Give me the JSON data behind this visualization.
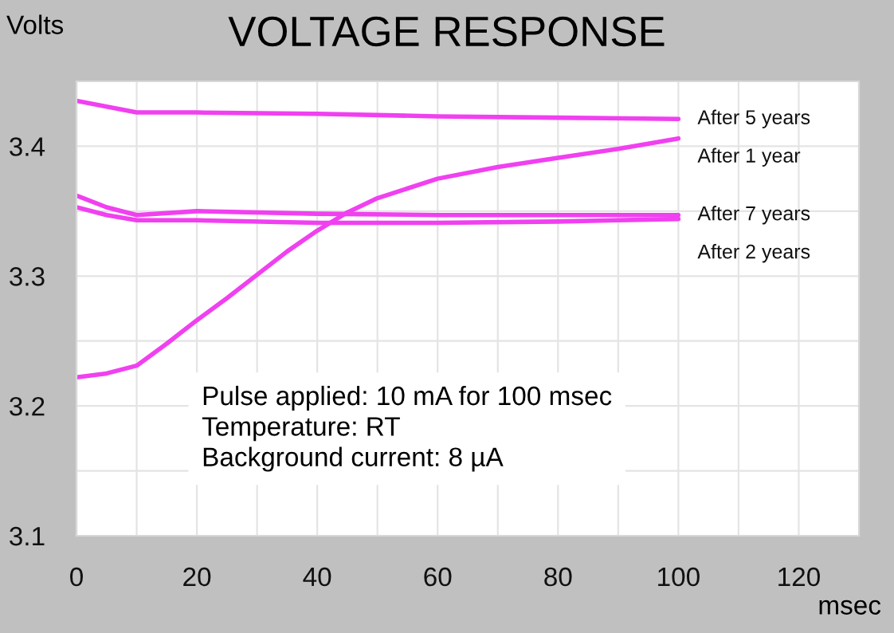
{
  "chart_data": {
    "type": "line",
    "title": "VOLTAGE RESPONSE",
    "ylabel": "Volts",
    "xlabel": "msec",
    "xlim": [
      0,
      130
    ],
    "ylim": [
      3.1,
      3.45
    ],
    "xticks": [
      0,
      {
        "value": 10,
        "label": null
      },
      20,
      {
        "value": 30,
        "label": null
      },
      40,
      {
        "value": 50,
        "label": null
      },
      60,
      {
        "value": 70,
        "label": null
      },
      80,
      {
        "value": 90,
        "label": null
      },
      100,
      {
        "value": 110,
        "label": null
      },
      120
    ],
    "yticks": [
      3.1,
      {
        "value": 3.15,
        "label": null
      },
      3.2,
      {
        "value": 3.25,
        "label": null
      },
      3.3,
      {
        "value": 3.35,
        "label": null
      },
      3.4
    ],
    "grid": true,
    "legend": false,
    "marker": "none",
    "line_style": "solid",
    "annotations": [
      "Pulse applied: 10 mA for 100 msec\nTemperature: RT\nBackground current: 8 µA"
    ],
    "series": [
      {
        "name": "After 5 years",
        "color": "#f040f0",
        "x": [
          0,
          10,
          20,
          40,
          60,
          80,
          100
        ],
        "values": [
          3.435,
          3.426,
          3.426,
          3.425,
          3.423,
          3.422,
          3.421
        ]
      },
      {
        "name": "After 1 year",
        "color": "#f040f0",
        "x": [
          0,
          5,
          10,
          15,
          20,
          25,
          30,
          35,
          40,
          45,
          50,
          60,
          70,
          80,
          90,
          100
        ],
        "values": [
          3.222,
          3.225,
          3.231,
          3.248,
          3.266,
          3.283,
          3.301,
          3.319,
          3.335,
          3.349,
          3.36,
          3.375,
          3.384,
          3.391,
          3.398,
          3.406
        ]
      },
      {
        "name": "After 7 years",
        "color": "#f040f0",
        "x": [
          0,
          5,
          10,
          20,
          40,
          60,
          80,
          100
        ],
        "values": [
          3.362,
          3.353,
          3.347,
          3.35,
          3.348,
          3.347,
          3.347,
          3.347
        ]
      },
      {
        "name": "After 2 years",
        "color": "#f040f0",
        "x": [
          0,
          5,
          10,
          20,
          40,
          60,
          80,
          100
        ],
        "values": [
          3.353,
          3.347,
          3.343,
          3.343,
          3.341,
          3.341,
          3.342,
          3.344
        ]
      }
    ]
  }
}
